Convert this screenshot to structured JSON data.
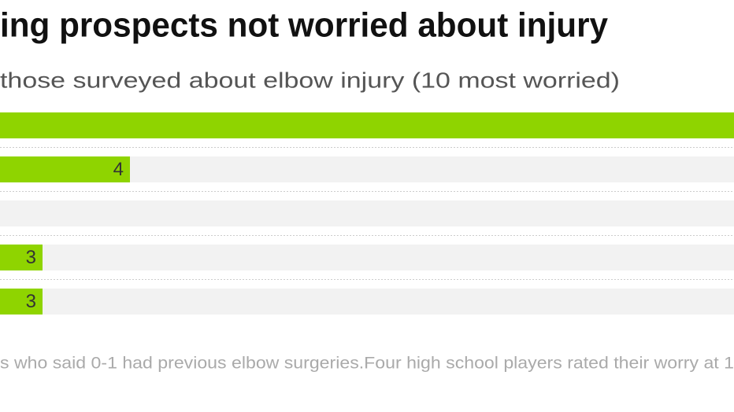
{
  "chart_data": {
    "type": "bar",
    "orientation": "horizontal",
    "title": "ing prospects not worried about injury",
    "subtitle": "those surveyed about elbow injury (10 most worried)",
    "values": [
      11,
      4,
      0,
      3,
      3
    ],
    "color": "#8fd400",
    "xlim": [
      0,
      11
    ],
    "note": "s who said 0-1 had previous elbow surgeries.Four high school players rated their worry at 1"
  }
}
